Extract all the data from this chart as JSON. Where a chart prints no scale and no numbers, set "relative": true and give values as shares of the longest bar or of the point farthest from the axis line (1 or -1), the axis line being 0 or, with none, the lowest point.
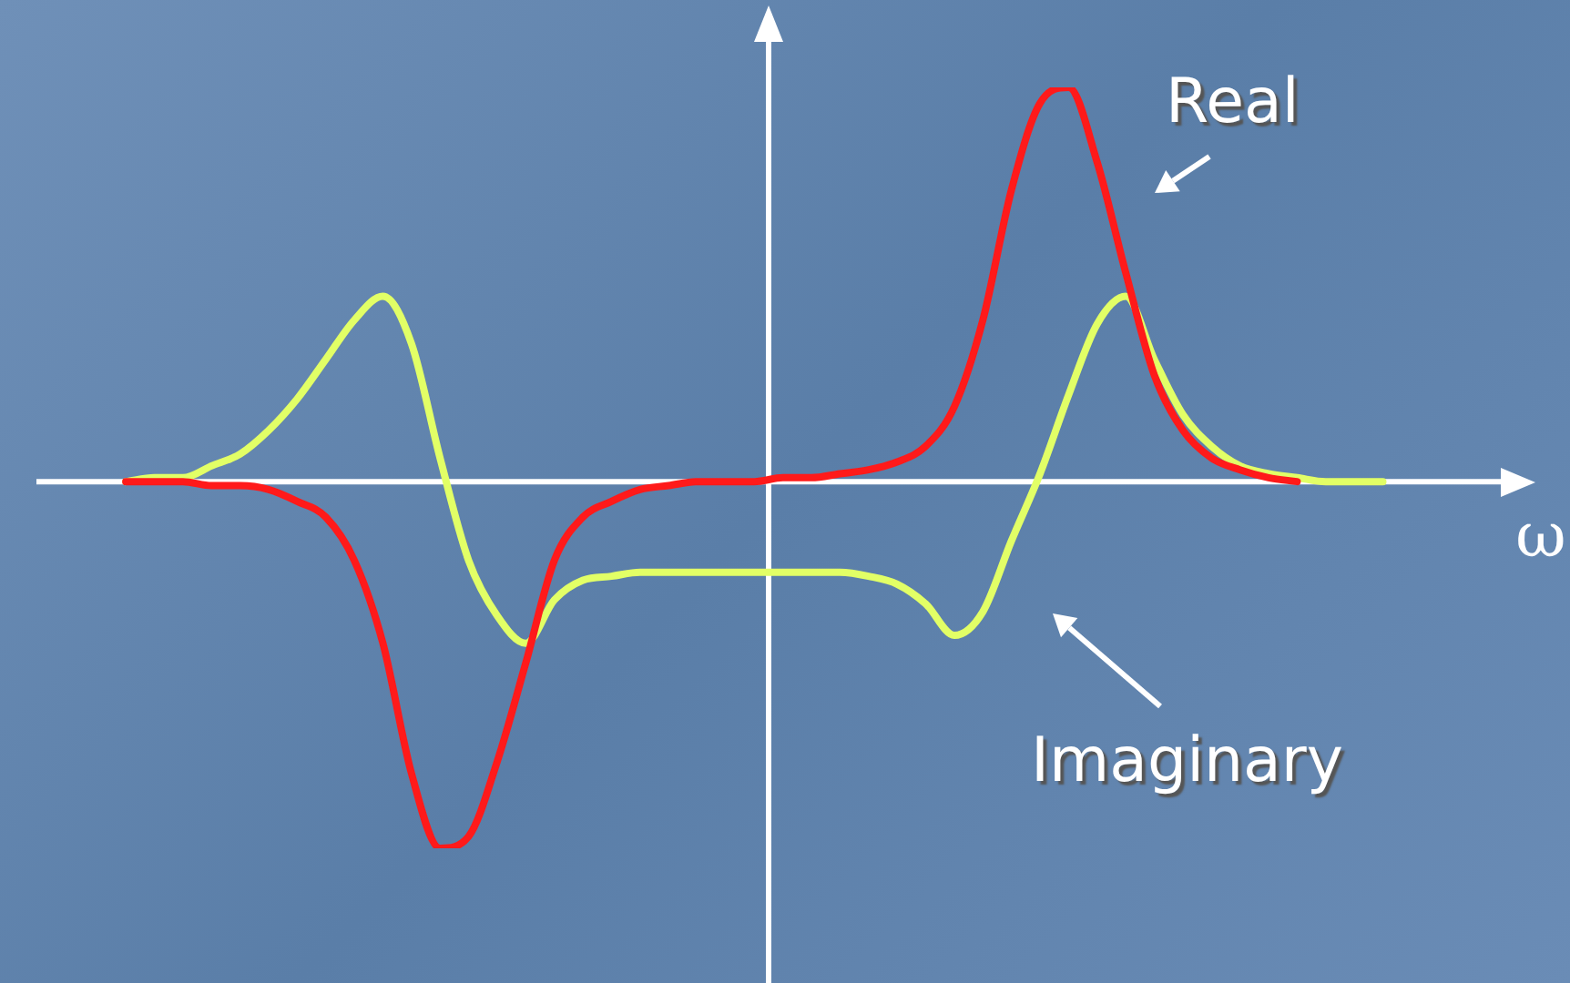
{
  "chart_data": {
    "type": "line",
    "relative": true,
    "xlabel": "ω",
    "legend": false,
    "grid": false,
    "marker": "none",
    "categories": [
      null,
      null,
      null,
      null,
      null,
      null,
      null,
      null,
      null,
      null,
      null,
      null,
      null,
      null,
      null,
      null,
      null,
      null,
      null,
      null,
      null,
      null,
      null,
      null,
      null,
      null,
      null,
      null,
      null,
      null,
      null,
      null,
      null,
      null,
      null,
      null,
      null,
      null,
      null,
      null,
      null,
      null,
      null,
      null,
      null,
      null,
      null,
      null,
      null,
      null,
      null,
      null
    ],
    "series": [
      {
        "name": "Real",
        "color": "#ff1a1a",
        "values": [
          null,
          null,
          null,
          0,
          0,
          0,
          -0.01,
          -0.01,
          -0.02,
          -0.05,
          -0.09,
          -0.2,
          -0.41,
          -0.74,
          -0.93,
          -0.9,
          -0.71,
          -0.46,
          -0.2,
          -0.09,
          -0.05,
          -0.02,
          -0.01,
          0,
          0,
          0,
          0.01,
          0.01,
          0.02,
          0.03,
          0.05,
          0.09,
          0.19,
          0.41,
          0.74,
          0.96,
          1,
          0.81,
          0.53,
          0.27,
          0.13,
          0.06,
          0.03,
          0.01,
          0,
          null,
          null,
          null,
          null,
          null,
          null,
          null
        ]
      },
      {
        "name": "Imaginary",
        "color": "#e2ff66",
        "values": [
          null,
          null,
          null,
          0,
          0.01,
          0.01,
          0.04,
          0.07,
          0.13,
          0.21,
          0.31,
          0.41,
          0.47,
          0.35,
          0.06,
          -0.2,
          -0.34,
          -0.41,
          -0.3,
          -0.25,
          -0.24,
          -0.23,
          -0.23,
          -0.23,
          -0.23,
          -0.23,
          -0.23,
          -0.23,
          -0.23,
          -0.24,
          -0.26,
          -0.31,
          -0.39,
          -0.33,
          -0.15,
          0.02,
          0.22,
          0.4,
          0.47,
          0.31,
          0.17,
          0.09,
          0.04,
          0.02,
          0.01,
          0,
          0,
          0,
          null,
          null,
          null,
          null
        ]
      }
    ]
  }
}
